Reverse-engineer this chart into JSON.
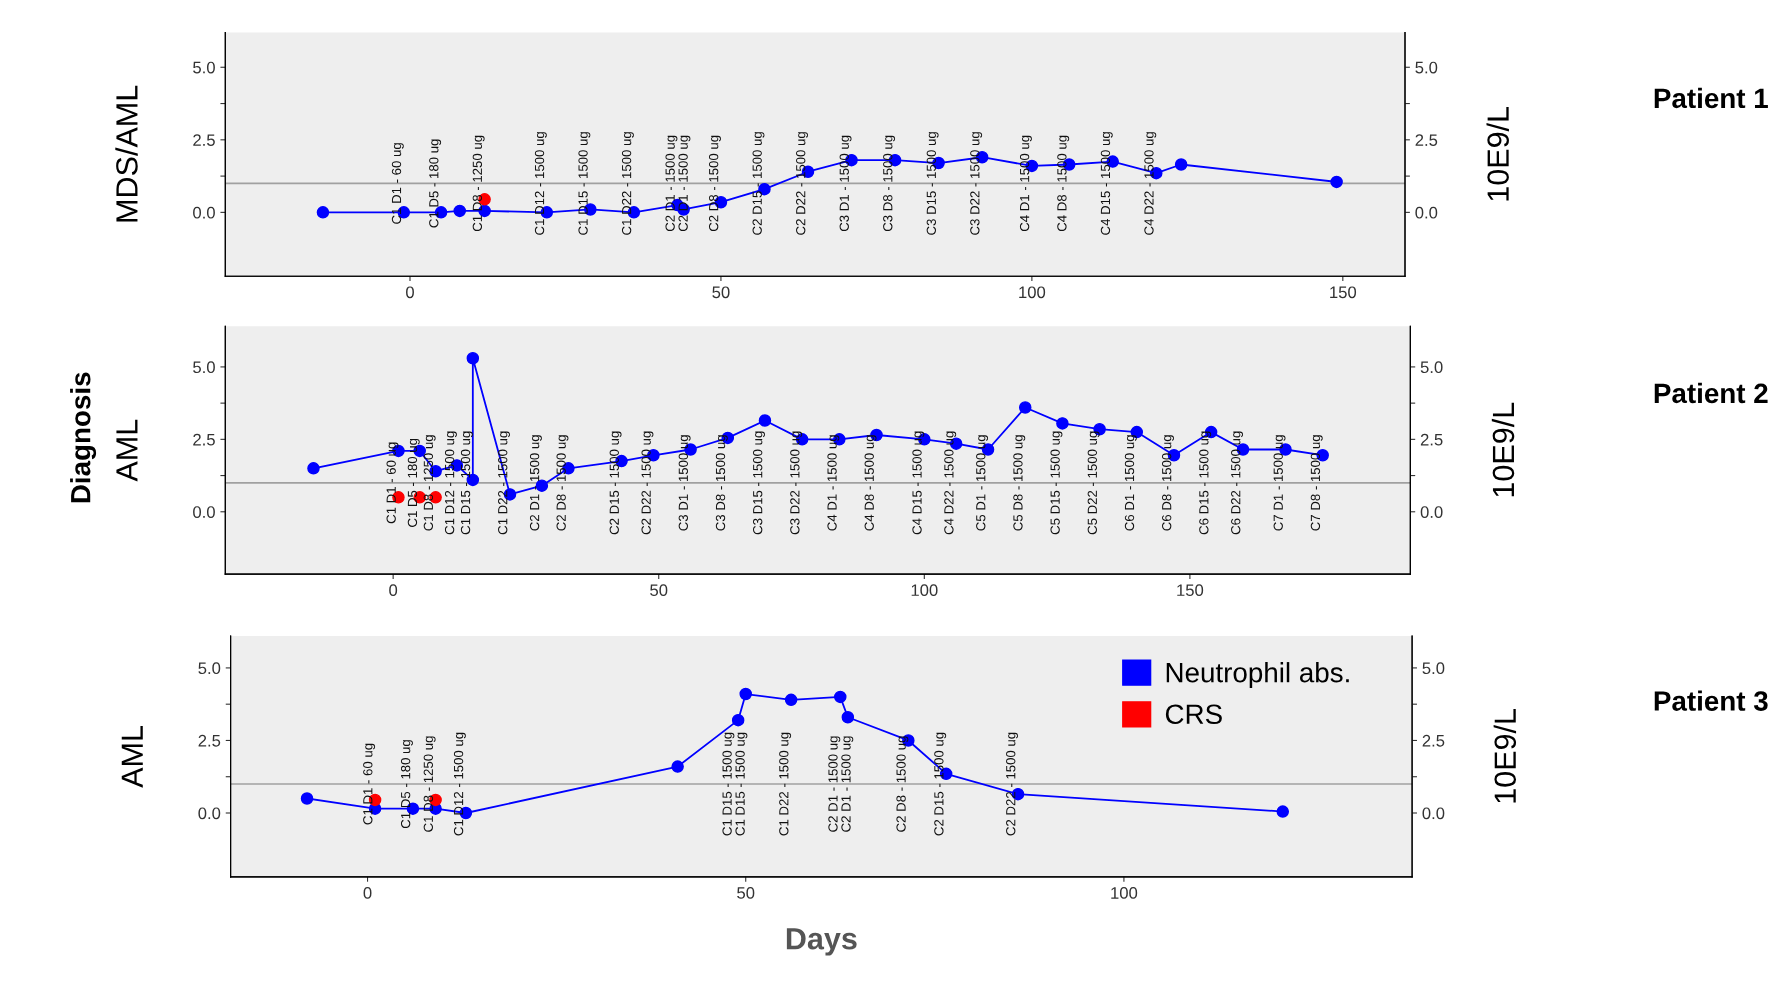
{
  "chart_data": [
    {
      "type": "line",
      "ylabel": "MDS/AML",
      "y2label": "10E9/L",
      "marker": "circle",
      "grid": false,
      "legend": false,
      "xlim": [
        -29.7,
        160
      ],
      "xticks": [
        0,
        50,
        100,
        150
      ],
      "ylim": [
        -2.2,
        6.2
      ],
      "yticks": [
        {
          "value": 0,
          "label": "0.0"
        },
        {
          "value": 1.25,
          "label": null
        },
        {
          "value": 2.5,
          "label": "2.5"
        },
        {
          "value": 3.75,
          "label": null
        },
        {
          "value": 5,
          "label": "5.0"
        }
      ],
      "y2lim": [
        -2.2,
        6.2
      ],
      "y2ticks": [
        {
          "value": 0,
          "label": "0.0"
        },
        {
          "value": 1.25,
          "label": null
        },
        {
          "value": 2.5,
          "label": "2.5"
        },
        {
          "value": 3.75,
          "label": null
        },
        {
          "value": 5,
          "label": "5.0"
        }
      ],
      "series": [
        {
          "color": "#0000ff",
          "x": [
            -14,
            -1,
            5,
            8,
            12,
            22,
            29,
            36,
            43,
            44,
            50,
            57,
            64,
            71,
            78,
            85,
            92,
            100,
            106,
            113,
            120,
            124,
            149
          ],
          "values": [
            0.0,
            0.0,
            0.0,
            0.05,
            0.05,
            0.0,
            0.1,
            0.0,
            0.25,
            0.1,
            0.35,
            0.8,
            1.4,
            1.8,
            1.8,
            1.7,
            1.9,
            1.6,
            1.65,
            1.75,
            1.35,
            1.65,
            1.05
          ]
        },
        {
          "type": "scatter",
          "color": "#ff0000",
          "x": [
            12
          ],
          "values": [
            0.45
          ]
        }
      ],
      "ref_lines": [
        {
          "axis": "y",
          "value": 1.0,
          "color": "#a0a0a0"
        }
      ],
      "annotations": [
        "Patient 1",
        {
          "text": "C1 D1 - 60 ug",
          "x": -1
        },
        {
          "text": "C1 D5 - 180 ug",
          "x": 5
        },
        {
          "text": "C1 D8 - 1250 ug",
          "x": 12
        },
        {
          "text": "C1 D12 - 1500 ug",
          "x": 22
        },
        {
          "text": "C1 D15 - 1500 ug",
          "x": 29
        },
        {
          "text": "C1 D22 - 1500 ug",
          "x": 36
        },
        {
          "text": "C2 D1 - 1500 ug",
          "x": 43
        },
        {
          "text": "C2 D1 - 1500 ug",
          "x": 44
        },
        {
          "text": "C2 D8 - 1500 ug",
          "x": 50
        },
        {
          "text": "C2 D15 - 1500 ug",
          "x": 57
        },
        {
          "text": "C2 D22 - 1500 ug",
          "x": 64
        },
        {
          "text": "C3 D1 - 1500 ug",
          "x": 71
        },
        {
          "text": "C3 D8 - 1500 ug",
          "x": 78
        },
        {
          "text": "C3 D15 - 1500 ug",
          "x": 85
        },
        {
          "text": "C3 D22 - 1500 ug",
          "x": 92
        },
        {
          "text": "C4 D1 - 1500 ug",
          "x": 100
        },
        {
          "text": "C4 D8 - 1500 ug",
          "x": 106
        },
        {
          "text": "C4 D15 - 1500 ug",
          "x": 113
        },
        {
          "text": "C4 D22 - 1500 ug",
          "x": 120
        }
      ]
    },
    {
      "type": "line",
      "ylabel": "AML",
      "y2label": "10E9/L",
      "marker": "circle",
      "grid": false,
      "legend": false,
      "xlim": [
        -31.6,
        191.5
      ],
      "xticks": [
        0,
        50,
        100,
        150
      ],
      "ylim": [
        -2.15,
        6.4
      ],
      "yticks": [
        {
          "value": 0,
          "label": "0.0"
        },
        {
          "value": 1.25,
          "label": null
        },
        {
          "value": 2.5,
          "label": "2.5"
        },
        {
          "value": 3.75,
          "label": null
        },
        {
          "value": 5,
          "label": "5.0"
        }
      ],
      "y2lim": [
        -2.15,
        6.4
      ],
      "y2ticks": [
        {
          "value": 0,
          "label": "0.0"
        },
        {
          "value": 1.25,
          "label": null
        },
        {
          "value": 2.5,
          "label": "2.5"
        },
        {
          "value": 3.75,
          "label": null
        },
        {
          "value": 5,
          "label": "5.0"
        }
      ],
      "series": [
        {
          "color": "#0000ff",
          "x": [
            -15,
            1,
            5,
            8,
            12,
            15,
            15,
            22,
            28,
            33,
            43,
            49,
            56,
            63,
            70,
            77,
            84,
            91,
            100,
            106,
            112,
            119,
            126,
            133,
            140,
            147,
            154,
            160,
            168,
            175
          ],
          "values": [
            1.5,
            2.1,
            2.1,
            1.4,
            1.6,
            1.1,
            5.3,
            0.6,
            0.9,
            1.5,
            1.75,
            1.95,
            2.15,
            2.55,
            3.15,
            2.5,
            2.5,
            2.65,
            2.5,
            2.35,
            2.15,
            3.6,
            3.05,
            2.85,
            2.75,
            1.95,
            2.75,
            2.15,
            2.15,
            1.95
          ]
        },
        {
          "type": "scatter",
          "color": "#ff0000",
          "x": [
            1,
            5,
            8
          ],
          "values": [
            0.5,
            0.5,
            0.5
          ]
        }
      ],
      "ref_lines": [
        {
          "axis": "y",
          "value": 1.0,
          "color": "#a0a0a0"
        }
      ],
      "annotations": [
        "Patient 2",
        "Diagnosis",
        {
          "text": "C1 D1 - 60 ug",
          "x": 1
        },
        {
          "text": "C1 D5 - 180 ug",
          "x": 5
        },
        {
          "text": "C1 D8 - 1250 ug",
          "x": 8
        },
        {
          "text": "C1 D12 - 1500 ug",
          "x": 12
        },
        {
          "text": "C1 D15 - 1500 ug",
          "x": 15
        },
        {
          "text": "C1 D22 - 1500 ug",
          "x": 22
        },
        {
          "text": "C2 D1 - 1500 ug",
          "x": 28
        },
        {
          "text": "C2 D8 - 1500 ug",
          "x": 33
        },
        {
          "text": "C2 D15 - 1500 ug",
          "x": 43
        },
        {
          "text": "C2 D22 - 1500 ug",
          "x": 49
        },
        {
          "text": "C3 D1 - 1500 ug",
          "x": 56
        },
        {
          "text": "C3 D8 - 1500 ug",
          "x": 63
        },
        {
          "text": "C3 D15 - 1500 ug",
          "x": 70
        },
        {
          "text": "C3 D22 - 1500 ug",
          "x": 77
        },
        {
          "text": "C4 D1 - 1500 ug",
          "x": 84
        },
        {
          "text": "C4 D8 - 1500 ug",
          "x": 91
        },
        {
          "text": "C4 D15 - 1500 ug",
          "x": 100
        },
        {
          "text": "C4 D22 - 1500 ug",
          "x": 106
        },
        {
          "text": "C5 D1 - 1500 ug",
          "x": 112
        },
        {
          "text": "C5 D8 - 1500 ug",
          "x": 119
        },
        {
          "text": "C5 D15 - 1500 ug",
          "x": 126
        },
        {
          "text": "C5 D22 - 1500 ug",
          "x": 133
        },
        {
          "text": "C6 D1 - 1500 ug",
          "x": 140
        },
        {
          "text": "C6 D8 - 1500 ug",
          "x": 147
        },
        {
          "text": "C6 D15 - 1500 ug",
          "x": 154
        },
        {
          "text": "C6 D22 - 1500 ug",
          "x": 160
        },
        {
          "text": "C7 D1 - 1500 ug",
          "x": 168
        },
        {
          "text": "C7 D8 - 1500 ug",
          "x": 175
        }
      ]
    },
    {
      "type": "line",
      "ylabel": "AML",
      "y2label": "10E9/L",
      "xlabel": "Days",
      "marker": "circle",
      "grid": false,
      "legend": "top right",
      "xlim": [
        -18.1,
        138.1
      ],
      "xticks": [
        0,
        50,
        100
      ],
      "ylim": [
        -2.2,
        6.1
      ],
      "yticks": [
        {
          "value": 0,
          "label": "0.0"
        },
        {
          "value": 1.25,
          "label": null
        },
        {
          "value": 2.5,
          "label": "2.5"
        },
        {
          "value": 3.75,
          "label": null
        },
        {
          "value": 5,
          "label": "5.0"
        }
      ],
      "y2lim": [
        -2.2,
        6.1
      ],
      "y2ticks": [
        {
          "value": 0,
          "label": "0.0"
        },
        {
          "value": 1.25,
          "label": null
        },
        {
          "value": 2.5,
          "label": "2.5"
        },
        {
          "value": 3.75,
          "label": null
        },
        {
          "value": 5,
          "label": "5.0"
        }
      ],
      "series": [
        {
          "name": "Neutrophil abs.",
          "color": "#0000ff",
          "x": [
            -8,
            1,
            6,
            9,
            13,
            41,
            49,
            50,
            56,
            62.5,
            63.5,
            71.5,
            76.5,
            86,
            121
          ],
          "values": [
            0.5,
            0.15,
            0.15,
            0.15,
            0.0,
            1.6,
            3.2,
            4.1,
            3.9,
            4.0,
            3.3,
            2.5,
            1.35,
            0.65,
            0.05
          ]
        },
        {
          "type": "scatter",
          "name": "CRS",
          "color": "#ff0000",
          "x": [
            1,
            9
          ],
          "values": [
            0.45,
            0.45
          ]
        }
      ],
      "ref_lines": [
        {
          "axis": "y",
          "value": 1.0,
          "color": "#a0a0a0"
        }
      ],
      "annotations": [
        "Patient 3",
        {
          "text": "C1 D1 - 60 ug",
          "x": 1
        },
        {
          "text": "C1 D5 - 180 ug",
          "x": 6
        },
        {
          "text": "C1 D8 - 1250 ug",
          "x": 9
        },
        {
          "text": "C1 D12 - 1500 ug",
          "x": 13
        },
        {
          "text": "C1 D15 - 1500 ug",
          "x": 48.5
        },
        {
          "text": "C1 D15 - 1500 ug",
          "x": 49
        },
        {
          "text": "C1 D22 - 1500 ug",
          "x": 56
        },
        {
          "text": "C2 D1 - 1500 ug",
          "x": 62.5
        },
        {
          "text": "C2 D1 - 1500 ug",
          "x": 63
        },
        {
          "text": "C2 D8 - 1500 ug",
          "x": 71.5
        },
        {
          "text": "C2 D15 - 1500 ug",
          "x": 76.5
        },
        {
          "text": "C2 D22 - 1500 ug",
          "x": 86
        }
      ]
    }
  ]
}
